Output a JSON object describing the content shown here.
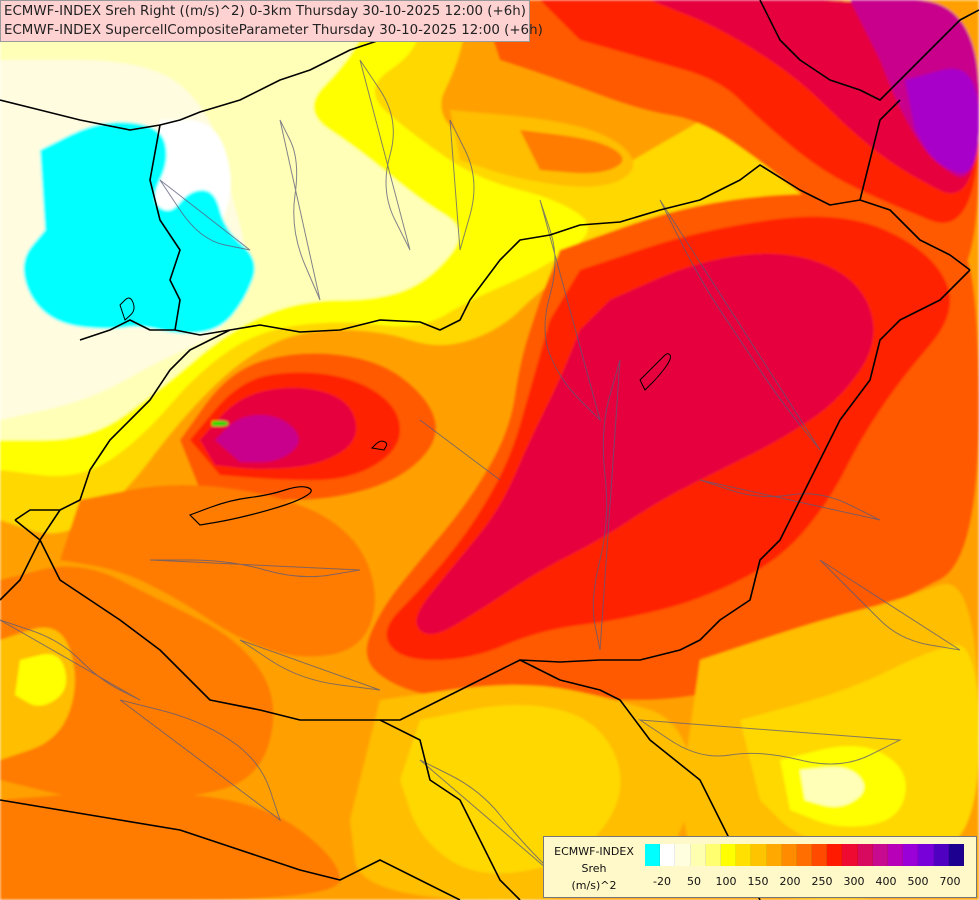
{
  "header": {
    "line1": "ECMWF-INDEX Sreh Right ((m/s)^2) 0-3km Thursday 30-10-2025 12:00 (+6h)",
    "line2": "ECMWF-INDEX SupercellCompositeParameter Thursday 30-10-2025 12:00 (+6h)"
  },
  "legend": {
    "name": "ECMWF-INDEX",
    "param": "Sreh",
    "unit": "(m/s)^2",
    "colors": [
      "#00ffff",
      "#ffffff",
      "#ffffe0",
      "#ffffb0",
      "#ffff70",
      "#ffff00",
      "#ffe000",
      "#ffc400",
      "#ffa800",
      "#ff8c00",
      "#ff6e00",
      "#ff4a00",
      "#ff1a00",
      "#ee0a30",
      "#d80a60",
      "#c80a90",
      "#b800b8",
      "#9a00d8",
      "#7800d8",
      "#5000c0",
      "#1e0090"
    ],
    "ticks": [
      "-20",
      "50",
      "100",
      "150",
      "200",
      "250",
      "300",
      "400",
      "500",
      "700"
    ]
  },
  "map_colors": {
    "cyan": "#00ffff",
    "white": "#ffffff",
    "pale": "#fffce0",
    "cream": "#ffffb8",
    "yellow": "#ffff00",
    "gold": "#ffd800",
    "amber": "#ffbe00",
    "orange": "#ffa000",
    "darkorange": "#ff7c00",
    "redorange": "#ff5a00",
    "red": "#ff2000",
    "crimson": "#e6003c",
    "magenta": "#c8008c",
    "purple": "#a800c8",
    "green": "#00dd00",
    "border": "#000000",
    "region": "#5a5a7a"
  }
}
